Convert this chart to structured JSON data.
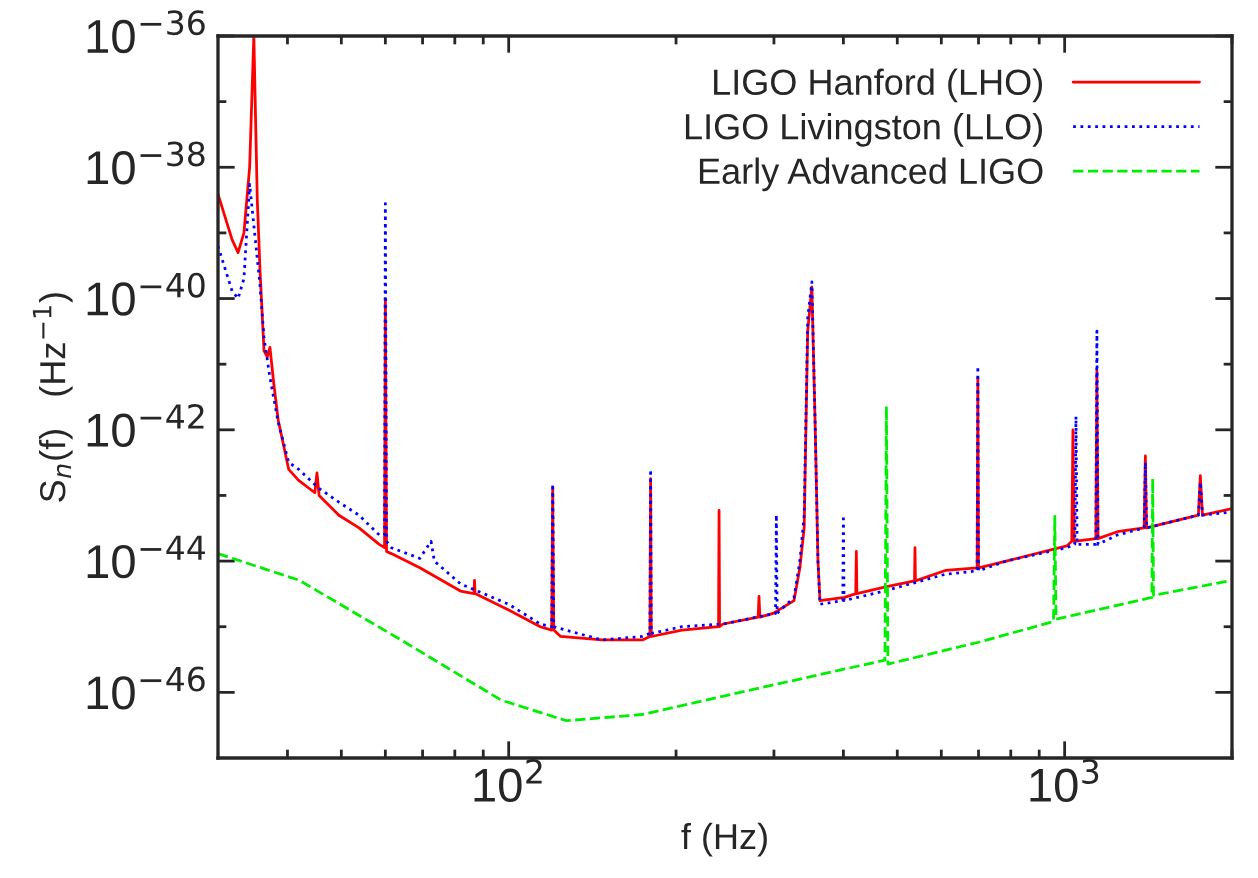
{
  "chart_data": {
    "type": "line",
    "xlabel": "f (Hz)",
    "ylabel": "S$_{n}$(f)   (Hz$^{−1}$)",
    "log": "xy",
    "grid": false,
    "legend": "top right",
    "marker": "none",
    "xlim": [
      30,
      2000
    ],
    "ylim": [
      1e-47,
      1e-36
    ],
    "xticks": [
      {
        "value": 40,
        "label": null
      },
      {
        "value": 50,
        "label": null
      },
      {
        "value": 60,
        "label": null
      },
      {
        "value": 70,
        "label": null
      },
      {
        "value": 80,
        "label": null
      },
      {
        "value": 90,
        "label": null
      },
      {
        "value": 100,
        "label": "10$^{2}$"
      },
      {
        "value": 200,
        "label": null
      },
      {
        "value": 300,
        "label": null
      },
      {
        "value": 400,
        "label": null
      },
      {
        "value": 500,
        "label": null
      },
      {
        "value": 600,
        "label": null
      },
      {
        "value": 700,
        "label": null
      },
      {
        "value": 800,
        "label": null
      },
      {
        "value": 900,
        "label": null
      },
      {
        "value": 1000,
        "label": "10$^{3}$"
      },
      {
        "value": 2000,
        "label": null
      }
    ],
    "yticks": [
      {
        "value": 1e-46,
        "label": "10$^{−46}$"
      },
      {
        "value": 1e-45,
        "label": null
      },
      {
        "value": 1e-44,
        "label": "10$^{−44}$"
      },
      {
        "value": 1e-43,
        "label": null
      },
      {
        "value": 1e-42,
        "label": "10$^{−42}$"
      },
      {
        "value": 1e-41,
        "label": null
      },
      {
        "value": 1e-40,
        "label": "10$^{−40}$"
      },
      {
        "value": 1e-39,
        "label": null
      },
      {
        "value": 1e-38,
        "label": "10$^{−38}$"
      },
      {
        "value": 1e-37,
        "label": null
      },
      {
        "value": 1e-36,
        "label": "10$^{−36}$"
      }
    ],
    "series": [
      {
        "name": "LIGO Hanford (LHO)",
        "color": "#ff0000",
        "line_style": "solid",
        "x": [
          30,
          31.8,
          32.6,
          33.4,
          34.2,
          34.8,
          35.3,
          35.7,
          36.3,
          36.8,
          37.2,
          37.8,
          38.5,
          40.2,
          41.9,
          44.8,
          45.2,
          45.6,
          49.5,
          53.8,
          58.5,
          59.8,
          60,
          60.3,
          61.5,
          69.2,
          81.9,
          86.6,
          86.8,
          87.0,
          100,
          114,
          119.5,
          120,
          120.5,
          124,
          147,
          174,
          179.5,
          180,
          180.5,
          205,
          238.5,
          239,
          239.5,
          243,
          281,
          282,
          283,
          299,
          326,
          334,
          340,
          345,
          351,
          356,
          360,
          363,
          402,
          421,
          422,
          423,
          474,
          537,
          538,
          539,
          610,
          696,
          698,
          700,
          785,
          1009,
          1030,
          1035,
          1040,
          1138,
          1143,
          1148,
          1244,
          1390,
          1397,
          1404,
          1740,
          1754,
          1770,
          2000
        ],
        "values": [
          3.9e-39,
          7.9e-40,
          5e-40,
          1e-39,
          1e-38,
          1e-36,
          3.2e-39,
          2.7e-40,
          1.6e-41,
          1.3e-41,
          1.8e-41,
          5e-42,
          1.4e-42,
          2.5e-43,
          1.7e-43,
          1.1e-43,
          2.2e-43,
          1e-43,
          5e-44,
          3.2e-44,
          1.8e-44,
          1.6e-44,
          1e-40,
          1.4e-44,
          1.3e-44,
          7.9e-45,
          3.5e-45,
          3.2e-45,
          5.1e-45,
          3.2e-45,
          1.8e-45,
          1e-45,
          8.9e-46,
          1.3e-43,
          8.9e-46,
          7.1e-46,
          6.3e-46,
          6.3e-46,
          7.1e-46,
          1.8e-43,
          7.1e-46,
          8.9e-46,
          1e-45,
          5.9e-44,
          1e-45,
          1.1e-45,
          1.4e-45,
          2.9e-45,
          1.4e-45,
          1.6e-45,
          2.5e-45,
          7.9e-45,
          3.2e-44,
          3.2e-41,
          1.5e-40,
          1e-42,
          1e-44,
          2.5e-45,
          2.8e-45,
          3.2e-45,
          1.4e-44,
          3.2e-45,
          4e-45,
          5e-45,
          1.6e-44,
          5e-45,
          7.2e-45,
          7.9e-45,
          6.3e-42,
          7.9e-45,
          1e-44,
          1.7e-44,
          2e-44,
          1e-42,
          2e-44,
          2.2e-44,
          7.9e-42,
          2.2e-44,
          2.8e-44,
          3.2e-44,
          4e-43,
          3.2e-44,
          5e-44,
          2e-43,
          5e-44,
          6.3e-44
        ]
      },
      {
        "name": "LIGO Livingston (LLO)",
        "color": "#0000ff",
        "line_style": "dotted",
        "x": [
          30,
          31.8,
          32.6,
          33.4,
          34.2,
          35.7,
          36.3,
          37.2,
          38.5,
          40.2,
          41.9,
          45.5,
          49.5,
          53.8,
          58.5,
          59.8,
          60,
          60.3,
          61.5,
          69.2,
          72.5,
          73.5,
          81.9,
          100,
          114,
          119.5,
          120,
          120.5,
          147,
          174,
          179.5,
          180,
          180.5,
          205,
          243,
          302,
          303,
          304,
          326,
          334,
          340,
          345,
          351,
          356,
          360,
          363,
          399,
          400,
          401,
          474,
          610,
          696,
          698,
          700,
          785,
          1009,
          1043,
          1048,
          1053,
          1138,
          1143,
          1148,
          1244,
          1390,
          1397,
          1404,
          1740,
          1754,
          1770,
          2000
        ],
        "values": [
          6.3e-40,
          1.3e-40,
          1e-40,
          2e-40,
          5.5e-39,
          1.6e-40,
          2.5e-41,
          6.3e-42,
          1.3e-42,
          3.2e-43,
          2.5e-43,
          1.3e-43,
          7.9e-44,
          5e-44,
          2.5e-44,
          2.5e-44,
          2.8e-39,
          2e-44,
          1.6e-44,
          1.1e-44,
          2e-44,
          1e-44,
          4.5e-45,
          2.2e-45,
          1.1e-45,
          1e-45,
          1.5e-43,
          1e-45,
          6.3e-46,
          7.1e-46,
          7.9e-46,
          2.5e-43,
          7.9e-46,
          1e-45,
          1.1e-45,
          1.6e-45,
          5.1e-44,
          1.6e-45,
          2.8e-45,
          1e-44,
          5e-44,
          5e-41,
          1.8e-40,
          1e-42,
          1e-44,
          2.2e-45,
          2.5e-45,
          5e-44,
          2.5e-45,
          3.5e-45,
          6.3e-45,
          7.1e-45,
          9.3e-42,
          7.1e-45,
          1e-44,
          1.6e-44,
          1.8e-44,
          1.6e-42,
          1.8e-44,
          1.8e-44,
          3.2e-41,
          1.8e-44,
          2.5e-44,
          3.2e-44,
          3.2e-43,
          3.2e-44,
          5e-44,
          1.6e-43,
          5e-44,
          5.6e-44
        ]
      },
      {
        "name": "Early Advanced LIGO",
        "color": "#00ee00",
        "line_style": "dashed",
        "x": [
          30,
          42,
          64,
          97,
          127,
          174,
          287,
          475,
          478,
          481,
          700,
          955,
          960,
          965,
          1435,
          1440,
          1445,
          2000
        ],
        "values": [
          1.3e-44,
          5.1e-45,
          6.3e-46,
          7.6e-47,
          3.7e-47,
          4.6e-47,
          1.2e-46,
          3.1e-46,
          2.3e-42,
          2.7e-46,
          5.8e-46,
          1.2e-45,
          4.8e-44,
          1.3e-45,
          2.8e-45,
          1.8e-43,
          3e-45,
          5.1e-45
        ]
      }
    ]
  }
}
